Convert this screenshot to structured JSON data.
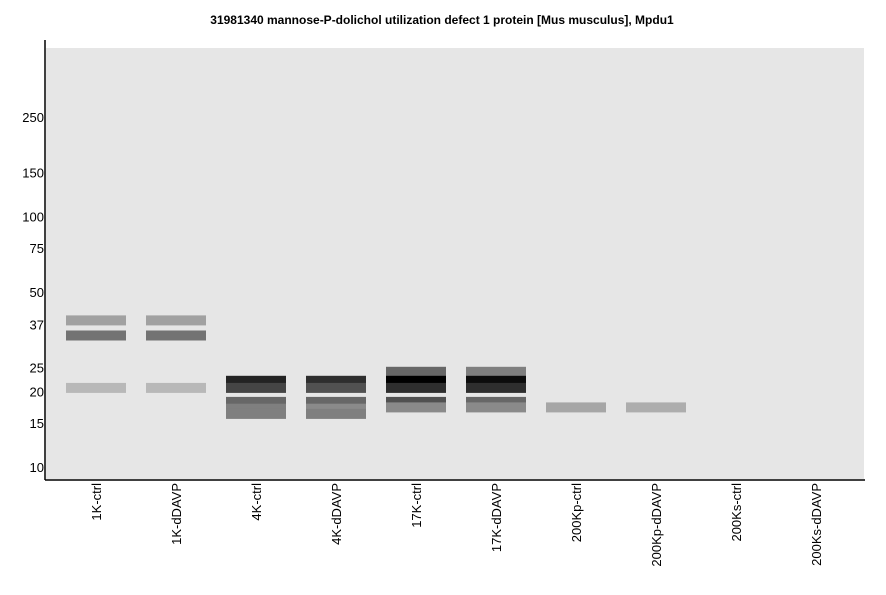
{
  "chart_data": {
    "type": "western-blot",
    "title": "31981340 mannose-P-dolichol utilization defect 1 protein [Mus musculus], Mpdu1",
    "xlabel": "",
    "ylabel": "",
    "y_scale": "log",
    "y_ticks": [
      "250",
      "150",
      "100",
      "75",
      "50",
      "37",
      "25",
      "20",
      "15",
      "10"
    ],
    "lanes": [
      "1K-ctrl",
      "1K-dDAVP",
      "4K-ctrl",
      "4K-dDAVP",
      "17K-ctrl",
      "17K-dDAVP",
      "200Kp-ctrl",
      "200Kp-dDAVP",
      "200Ks-ctrl",
      "200Ks-dDAVP"
    ],
    "bands": [
      {
        "lane": 0,
        "mw": 38.5,
        "intensity": 0.3
      },
      {
        "lane": 0,
        "mw": 33.5,
        "intensity": 0.5
      },
      {
        "lane": 0,
        "mw": 20.7,
        "intensity": 0.2
      },
      {
        "lane": 1,
        "mw": 38.5,
        "intensity": 0.3
      },
      {
        "lane": 1,
        "mw": 33.5,
        "intensity": 0.5
      },
      {
        "lane": 1,
        "mw": 20.7,
        "intensity": 0.2
      },
      {
        "lane": 2,
        "mw": 22.1,
        "intensity": 0.85
      },
      {
        "lane": 2,
        "mw": 20.7,
        "intensity": 0.7
      },
      {
        "lane": 2,
        "mw": 18.2,
        "intensity": 0.55
      },
      {
        "lane": 2,
        "mw": 17.1,
        "intensity": 0.45
      },
      {
        "lane": 2,
        "mw": 16.3,
        "intensity": 0.45
      },
      {
        "lane": 3,
        "mw": 22.1,
        "intensity": 0.8
      },
      {
        "lane": 3,
        "mw": 20.7,
        "intensity": 0.65
      },
      {
        "lane": 3,
        "mw": 18.2,
        "intensity": 0.55
      },
      {
        "lane": 3,
        "mw": 17.1,
        "intensity": 0.4
      },
      {
        "lane": 3,
        "mw": 16.3,
        "intensity": 0.45
      },
      {
        "lane": 4,
        "mw": 24.0,
        "intensity": 0.55
      },
      {
        "lane": 4,
        "mw": 22.1,
        "intensity": 1.0
      },
      {
        "lane": 4,
        "mw": 20.7,
        "intensity": 0.8
      },
      {
        "lane": 4,
        "mw": 18.2,
        "intensity": 0.65
      },
      {
        "lane": 4,
        "mw": 17.3,
        "intensity": 0.4
      },
      {
        "lane": 5,
        "mw": 24.0,
        "intensity": 0.45
      },
      {
        "lane": 5,
        "mw": 22.1,
        "intensity": 0.95
      },
      {
        "lane": 5,
        "mw": 20.7,
        "intensity": 0.8
      },
      {
        "lane": 5,
        "mw": 18.2,
        "intensity": 0.55
      },
      {
        "lane": 5,
        "mw": 17.3,
        "intensity": 0.4
      },
      {
        "lane": 6,
        "mw": 17.3,
        "intensity": 0.28
      },
      {
        "lane": 7,
        "mw": 17.3,
        "intensity": 0.25
      }
    ],
    "colors": {
      "background": "#ffffff",
      "gel": "#e6e6e6",
      "axis": "#000000"
    }
  }
}
